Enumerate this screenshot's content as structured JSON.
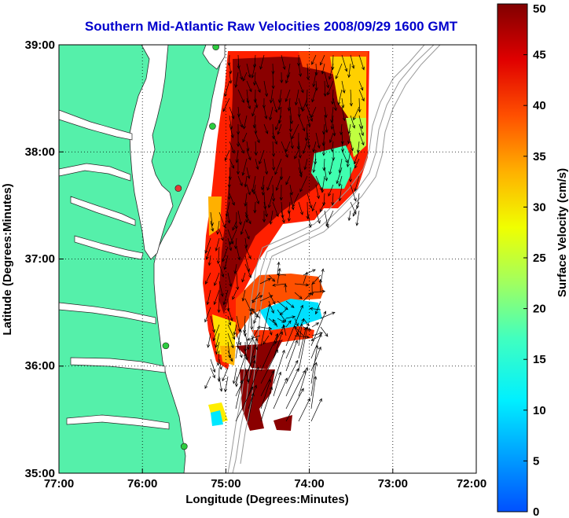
{
  "chart_data": {
    "type": "vector-field-map",
    "title": "Southern Mid-Atlantic Raw Velocities 2008/09/29 1600 GMT",
    "xlabel": "Longitude (Degrees:Minutes)",
    "ylabel": "Latitude (Degrees:Minutes)",
    "xlim": [
      -77,
      -72
    ],
    "ylim": [
      35,
      39
    ],
    "x_ticks": [
      "77:00",
      "76:00",
      "75:00",
      "74:00",
      "73:00",
      "72:00"
    ],
    "y_ticks": [
      "39:00",
      "38:00",
      "37:00",
      "36:00",
      "35:00"
    ],
    "grid": true,
    "colorbar": {
      "label": "Surface Velocity (cm/s)",
      "range": [
        0,
        50
      ],
      "ticks": [
        "50",
        "45",
        "40",
        "35",
        "30",
        "25",
        "20",
        "15",
        "10",
        "5",
        "0"
      ]
    },
    "colors": {
      "land": "#55f0aa",
      "water": "#ffffff",
      "title": "#0000cc",
      "arrows": "#000000",
      "bathymetry": "#999999"
    },
    "radar_sites": [
      {
        "lon": -75.12,
        "lat": 38.98,
        "color": "#2ecc40"
      },
      {
        "lon": -75.16,
        "lat": 38.24,
        "color": "#2ecc40"
      },
      {
        "lon": -75.57,
        "lat": 37.66,
        "color": "#e53935"
      },
      {
        "lon": -75.72,
        "lat": 36.19,
        "color": "#2ecc40"
      },
      {
        "lon": -75.5,
        "lat": 35.25,
        "color": "#2ecc40"
      }
    ]
  }
}
